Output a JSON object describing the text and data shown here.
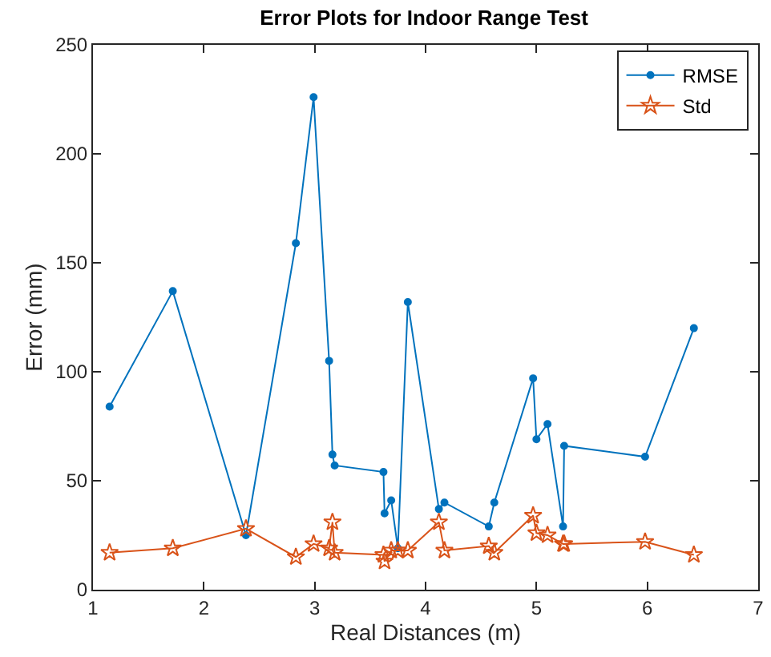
{
  "chart_data": {
    "type": "line",
    "title": "Error Plots for Indoor Range Test",
    "xlabel": "Real Distances (m)",
    "ylabel": "Error (mm)",
    "x": [
      1.15,
      1.72,
      2.38,
      2.83,
      2.99,
      3.13,
      3.16,
      3.18,
      3.62,
      3.63,
      3.69,
      3.75,
      3.84,
      4.12,
      4.17,
      4.57,
      4.62,
      4.97,
      5.0,
      5.1,
      5.24,
      5.25,
      5.98,
      6.42
    ],
    "series": [
      {
        "name": "RMSE",
        "color": "#0072bd",
        "marker": "circle",
        "values": [
          84,
          137,
          25,
          159,
          226,
          105,
          62,
          57,
          54,
          35,
          41,
          19,
          132,
          37,
          40,
          29,
          40,
          97,
          69,
          76,
          29,
          66,
          61,
          120
        ]
      },
      {
        "name": "Std",
        "color": "#d95319",
        "marker": "star",
        "values": [
          17,
          19,
          28,
          15,
          21,
          19,
          31,
          17,
          16,
          13,
          18,
          18,
          18,
          31,
          18,
          20,
          17,
          34,
          26,
          25,
          21,
          21,
          22,
          16
        ]
      }
    ],
    "xlim": [
      1,
      7
    ],
    "xticks": [
      1,
      2,
      3,
      4,
      5,
      6,
      7
    ],
    "ylim": [
      0,
      250
    ],
    "yticks": [
      0,
      50,
      100,
      150,
      200,
      250
    ],
    "legend": "top right",
    "line_style": "solid"
  }
}
